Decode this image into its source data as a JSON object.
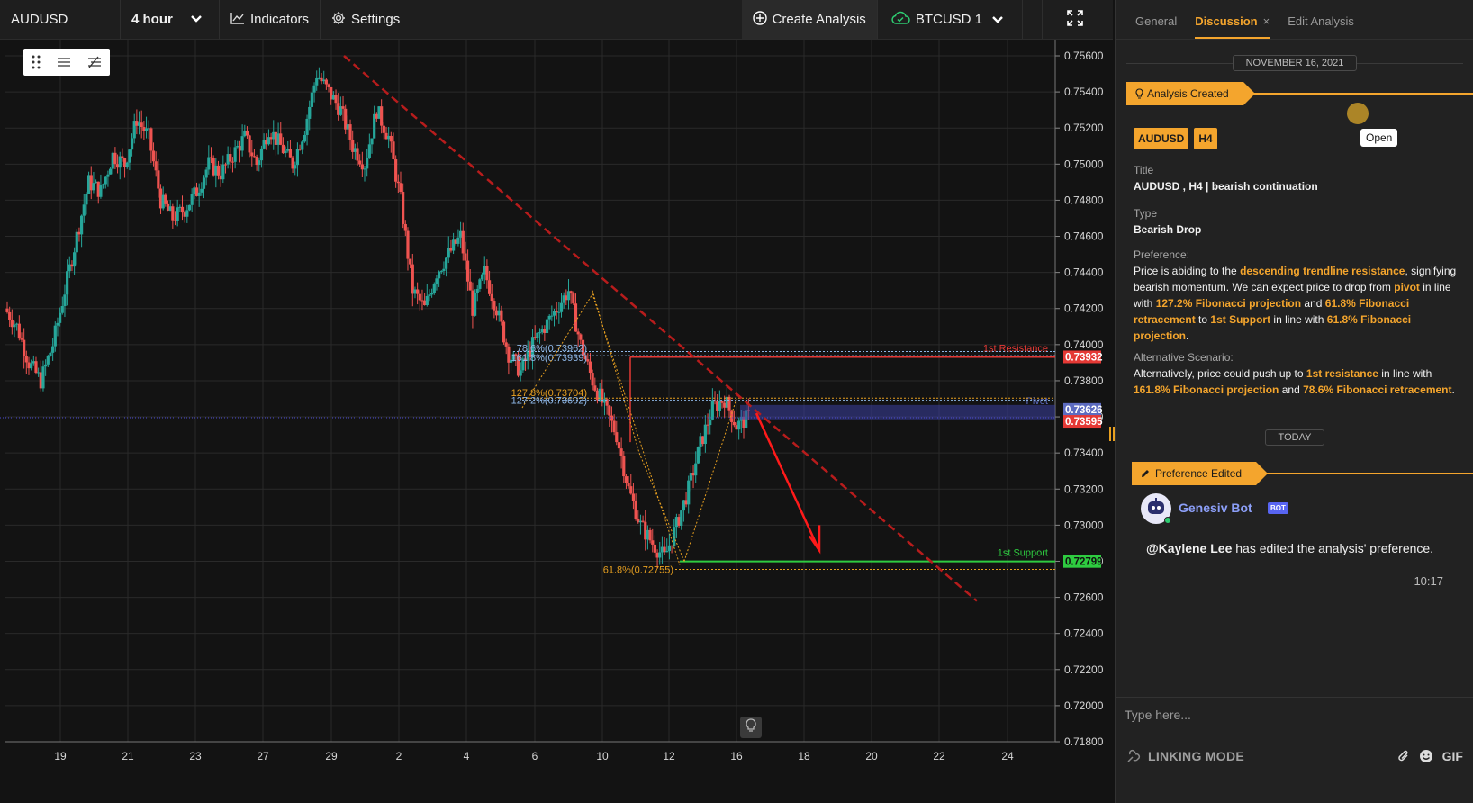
{
  "toolbar": {
    "symbol": "AUDUSD",
    "interval": "4 hour",
    "indicators_label": "Indicators",
    "settings_label": "Settings",
    "create_analysis_label": "Create Analysis",
    "account_label": "BTCUSD 1"
  },
  "chart_data": {
    "type": "candlestick",
    "symbol": "AUDUSD",
    "timeframe": "H4",
    "y_ticks": [
      "0.75600",
      "0.75400",
      "0.75200",
      "0.75000",
      "0.74800",
      "0.74600",
      "0.74400",
      "0.74200",
      "0.74000",
      "0.73800",
      "0.73600",
      "0.73400",
      "0.73200",
      "0.73000",
      "0.72800",
      "0.72600",
      "0.72400",
      "0.72200",
      "0.72000",
      "0.71800"
    ],
    "ylim": [
      0.718,
      0.756
    ],
    "x_ticks": [
      "19",
      "21",
      "23",
      "27",
      "29",
      "2",
      "4",
      "6",
      "10",
      "12",
      "16",
      "18",
      "20",
      "22",
      "24"
    ],
    "close_path": [
      0.742,
      0.741,
      0.739,
      0.738,
      0.74,
      0.743,
      0.746,
      0.749,
      0.7485,
      0.7505,
      0.75,
      0.7525,
      0.7515,
      0.748,
      0.747,
      0.7475,
      0.7485,
      0.75,
      0.7495,
      0.7505,
      0.7515,
      0.75,
      0.752,
      0.751,
      0.75,
      0.752,
      0.755,
      0.754,
      0.753,
      0.751,
      0.75,
      0.753,
      0.7515,
      0.748,
      0.743,
      0.742,
      0.744,
      0.745,
      0.746,
      0.742,
      0.744,
      0.742,
      0.7395,
      0.7385,
      0.74,
      0.741,
      0.742,
      0.743,
      0.74,
      0.738,
      0.7365,
      0.735,
      0.732,
      0.73,
      0.729,
      0.7282,
      0.73,
      0.732,
      0.7345,
      0.7365,
      0.737,
      0.7355,
      0.736
    ],
    "levels": [
      {
        "label": "1st Resistance",
        "value": "0.73932",
        "color": "#e53935"
      },
      {
        "label": "Pivot",
        "value": "0.73626",
        "color": "#5c6bc0"
      },
      {
        "label": "",
        "value": "0.73595",
        "color": "#e53935"
      },
      {
        "label": "1st Support",
        "value": "0.72799",
        "color": "#2ecc40"
      }
    ],
    "fib_labels": [
      {
        "text": "78.6%(0.73962)",
        "color": "#8fb8e8"
      },
      {
        "text": "161.8%(0.73939)",
        "color": "#8fb8e8"
      },
      {
        "text": "127.2%(0.73692)",
        "color": "#8fb8e8"
      },
      {
        "text": "127.8%(0.73704)",
        "color": "#e8a020"
      },
      {
        "text": "61.8%(0.72755)",
        "color": "#e8a020"
      }
    ],
    "bull_color": "#26a69a",
    "bear_color": "#ef5350"
  },
  "panel": {
    "tabs": [
      {
        "label": "General"
      },
      {
        "label": "Discussion",
        "active": true
      },
      {
        "label": "Edit Analysis"
      }
    ],
    "tab_close": "×",
    "date_1": "NOVEMBER 16, 2021",
    "event_1": "Analysis Created",
    "tooltip_open": "Open",
    "chips": [
      "AUDUSD",
      "H4"
    ],
    "title_label": "Title",
    "title_value": "AUDUSD , H4 | bearish continuation",
    "type_label": "Type",
    "type_value": "Bearish Drop",
    "preference_label": "Preference:",
    "pref": {
      "t1": "Price is abiding to the ",
      "h1": "descending trendline resistance",
      "t2": ", signifying bearish momentum. We can expect price to drop from ",
      "h2": "pivot",
      "t3": " in line with ",
      "h3": "127.2% Fibonacci projection",
      "t4": " and ",
      "h4": "61.8% Fibonacci retracement",
      "t5": " to ",
      "h5": "1st Support",
      "t6": " in line with ",
      "h6": "61.8% Fibonacci projection",
      "t7": "."
    },
    "alt_label": "Alternative Scenario:",
    "alt": {
      "t1": "Alternatively, price could push up to ",
      "h1": "1st resistance",
      "t2": " in line with ",
      "h2": "161.8% Fibonacci projection",
      "t3": " and ",
      "h3": "78.6% Fibonacci retracement",
      "t4": "."
    },
    "date_2": "TODAY",
    "event_2": "Preference Edited",
    "bot_name": "Genesiv Bot",
    "bot_badge": "BOT",
    "bot_mention": "@Kaylene Lee",
    "bot_text": " has edited the analysis' preference.",
    "bot_time": "10:17",
    "composer_placeholder": "Type here...",
    "linking_mode": "LINKING MODE",
    "gif_label": "GIF"
  },
  "colors": {
    "accent": "#f4a52d",
    "resistance": "#e53935",
    "support": "#2ecc40",
    "trendline": "#b71c1c"
  }
}
